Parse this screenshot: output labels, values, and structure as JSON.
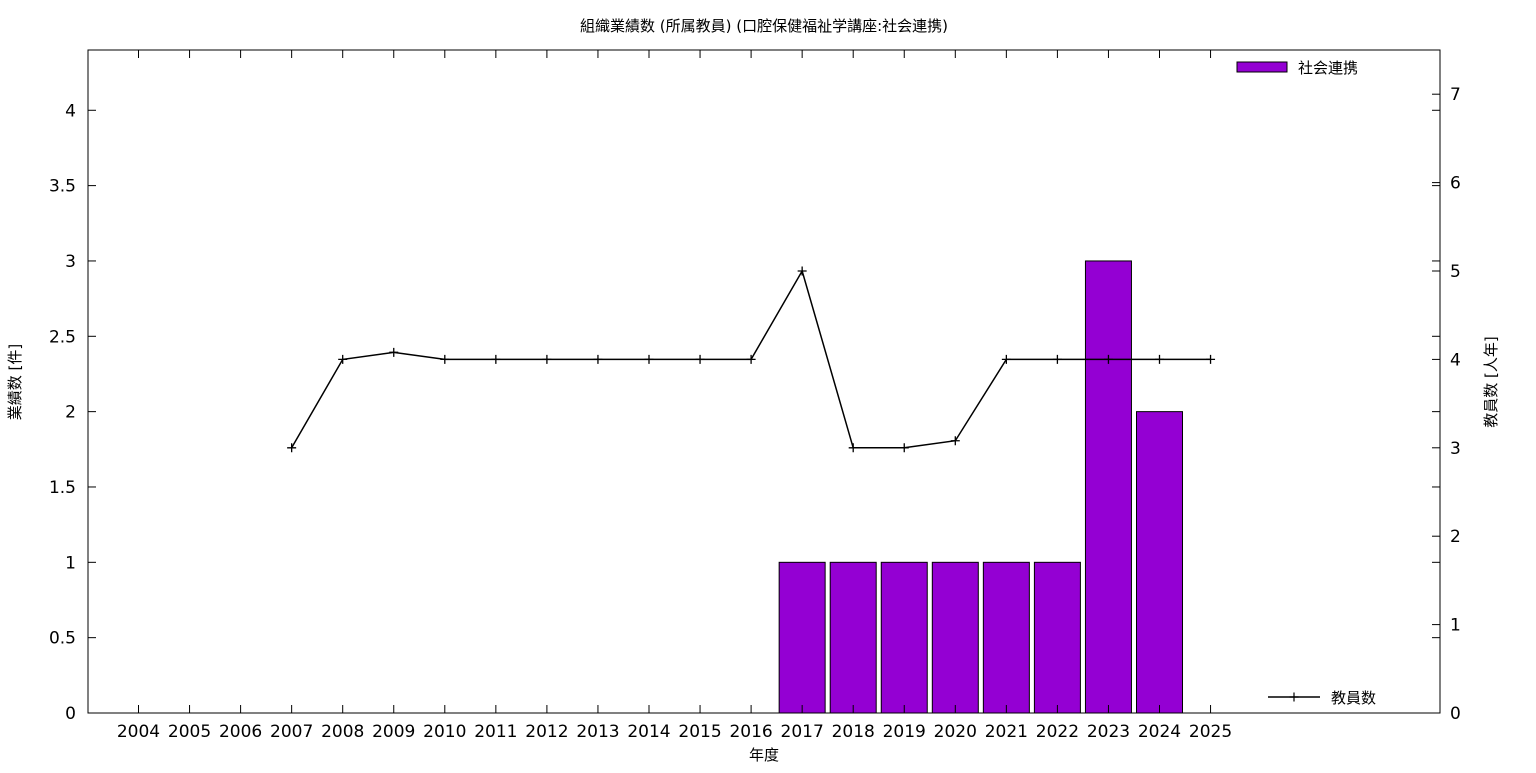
{
  "chart_data": {
    "type": "bar",
    "title": "組織業績数 (所属教員) (口腔保健福祉学講座:社会連携)",
    "xlabel": "年度",
    "ylabel": "業績数 [件]",
    "y2label": "教員数 [人年]",
    "categories": [
      "2004",
      "2005",
      "2006",
      "2007",
      "2008",
      "2009",
      "2010",
      "2011",
      "2012",
      "2013",
      "2014",
      "2015",
      "2016",
      "2017",
      "2018",
      "2019",
      "2020",
      "2021",
      "2022",
      "2023",
      "2024",
      "2025"
    ],
    "ylim": [
      0,
      4.4
    ],
    "y2lim": [
      0,
      7.5
    ],
    "yticks": [
      "0",
      "0.5",
      "1",
      "1.5",
      "2",
      "2.5",
      "3",
      "3.5",
      "4"
    ],
    "y2ticks": [
      "0",
      "1",
      "2",
      "3",
      "4",
      "5",
      "6",
      "7"
    ],
    "series": [
      {
        "name": "社会連携",
        "type": "bar",
        "axis": "left",
        "color": "#9400d3",
        "values": [
          null,
          null,
          null,
          null,
          null,
          null,
          null,
          null,
          null,
          null,
          null,
          null,
          null,
          1,
          1,
          1,
          1,
          1,
          1,
          3,
          2,
          null
        ]
      },
      {
        "name": "教員数",
        "type": "line",
        "axis": "right",
        "color": "#000000",
        "values": [
          null,
          null,
          null,
          3,
          4,
          4.08,
          4,
          4,
          4,
          4,
          4,
          4,
          4,
          5,
          3,
          3,
          3.08,
          4,
          4,
          4,
          4,
          4
        ]
      }
    ],
    "legend": [
      "top-right",
      "bottom-right"
    ],
    "grid": false
  }
}
